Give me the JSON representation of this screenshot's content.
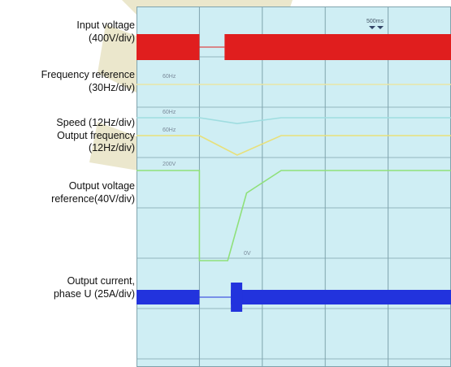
{
  "labels": {
    "input_voltage": [
      "Input voltage",
      "(400V/div)"
    ],
    "freq_ref": [
      "Frequency reference",
      "(30Hz/div)"
    ],
    "speed_output_freq": [
      "Speed (12Hz/div)",
      "Output frequency",
      "(12Hz/div)"
    ],
    "output_voltage_ref": [
      "Output voltage",
      "reference(40V/div)"
    ],
    "output_current": [
      "Output current,",
      "phase U (25A/div)"
    ]
  },
  "scope_text": {
    "timebase": "500ms",
    "freq_ref_level": "60Hz",
    "speed_level": "60Hz",
    "output_freq_level": "60Hz",
    "voltage_level": "200V",
    "zero_voltage": "0V"
  },
  "colors": {
    "screen": "#cfeef4",
    "grid": "#7fa3ad",
    "input_voltage": "#e01e1e",
    "freq_ref": "#e9e6a6",
    "speed": "#9fdde0",
    "output_freq": "#e8e07a",
    "output_voltage": "#8fe07a",
    "output_current": "#2233dd",
    "logo": "#e8e3c4"
  },
  "chart_data": {
    "type": "line",
    "title": "",
    "xlabel": "",
    "ylabel": "",
    "x_unit": "divisions",
    "xlim": [
      0,
      5
    ],
    "grid": true,
    "series": [
      {
        "name": "Input voltage",
        "scale": "400V/div",
        "kind": "band",
        "segments": [
          [
            0,
            1.0
          ],
          [
            1.4,
            5.0
          ]
        ]
      },
      {
        "name": "Frequency reference",
        "scale": "30Hz/div",
        "x": [
          0,
          5
        ],
        "y": [
          60,
          60
        ]
      },
      {
        "name": "Speed",
        "scale": "12Hz/div",
        "x": [
          0,
          1.0,
          1.6,
          2.3,
          5.0
        ],
        "y": [
          60,
          60,
          52,
          60,
          60
        ]
      },
      {
        "name": "Output frequency",
        "scale": "12Hz/div",
        "x": [
          0,
          1.0,
          1.6,
          2.3,
          5.0
        ],
        "y": [
          60,
          60,
          45,
          60,
          60
        ]
      },
      {
        "name": "Output voltage reference",
        "scale": "40V/div",
        "x": [
          0,
          1.0,
          1.0,
          1.45,
          1.75,
          2.3,
          5.0
        ],
        "y": [
          200,
          200,
          0,
          0,
          150,
          200,
          200
        ]
      },
      {
        "name": "Output current, phase U",
        "scale": "25A/div",
        "kind": "band",
        "segments": [
          [
            0,
            1.0
          ],
          [
            1.5,
            5.0
          ]
        ]
      }
    ]
  }
}
